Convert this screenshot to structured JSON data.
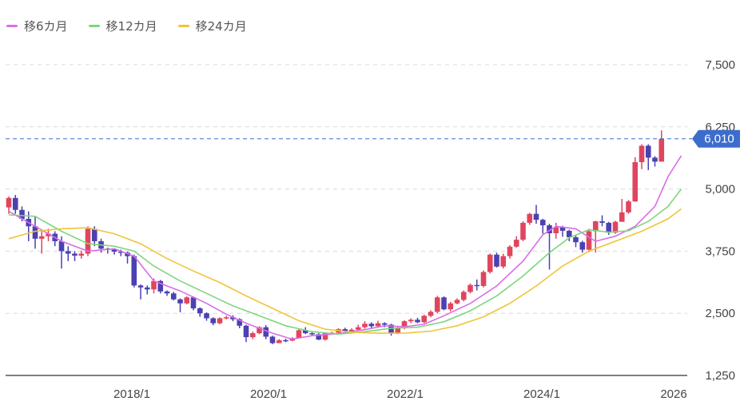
{
  "legend": [
    {
      "label": "移6カ月",
      "color": "#d96ee8"
    },
    {
      "label": "移12カ月",
      "color": "#7ed67e"
    },
    {
      "label": "移24カ月",
      "color": "#efc53a"
    }
  ],
  "current_price": {
    "label": "6,010",
    "value": 6010,
    "color": "#3d6dcc"
  },
  "colors": {
    "up": "#e0455e",
    "down": "#4b41b3",
    "grid": "#d5d8dc",
    "axis": "#555555"
  },
  "chart_data": {
    "type": "candlestick",
    "title": "",
    "xlabel": "",
    "ylabel": "",
    "ylim": [
      1250,
      8000
    ],
    "yticks": [
      1250,
      2500,
      3750,
      5000,
      6250,
      7500
    ],
    "ytick_labels": [
      "1,250",
      "2,500",
      "3,750",
      "5,000",
      "6,250",
      "7,500"
    ],
    "xtick_labels": [
      "2018/1",
      "2020/1",
      "2022/1",
      "2024/1",
      "2026"
    ],
    "grid": true,
    "legend_position": "top-left",
    "start_month": "2016/03",
    "candles": [
      [
        4630,
        4820,
        4850,
        4500
      ],
      [
        4820,
        4580,
        4880,
        4500
      ],
      [
        4580,
        4400,
        4650,
        4350
      ],
      [
        4400,
        4250,
        4550,
        3950
      ],
      [
        4250,
        4000,
        4450,
        3800
      ],
      [
        4000,
        4050,
        4150,
        3700
      ],
      [
        4050,
        4100,
        4200,
        3950
      ],
      [
        4100,
        3950,
        4150,
        3850
      ],
      [
        3950,
        3750,
        4050,
        3400
      ],
      [
        3750,
        3700,
        3850,
        3550
      ],
      [
        3700,
        3660,
        3750,
        3550
      ],
      [
        3660,
        3700,
        3760,
        3600
      ],
      [
        3700,
        4200,
        4250,
        3650
      ],
      [
        4200,
        3950,
        4250,
        3850
      ],
      [
        3950,
        3800,
        4000,
        3720
      ],
      [
        3800,
        3780,
        3820,
        3700
      ],
      [
        3780,
        3740,
        3800,
        3680
      ],
      [
        3740,
        3720,
        3780,
        3650
      ],
      [
        3720,
        3650,
        3740,
        3500
      ],
      [
        3650,
        3060,
        3680,
        3020
      ],
      [
        3060,
        3020,
        3080,
        2780
      ],
      [
        3020,
        2980,
        3060,
        2880
      ],
      [
        2980,
        3150,
        3200,
        2900
      ],
      [
        3150,
        2940,
        3170,
        2900
      ],
      [
        2940,
        2900,
        2960,
        2850
      ],
      [
        2900,
        2780,
        2930,
        2760
      ],
      [
        2780,
        2700,
        2800,
        2520
      ],
      [
        2700,
        2820,
        2840,
        2680
      ],
      [
        2820,
        2600,
        2840,
        2560
      ],
      [
        2600,
        2500,
        2620,
        2430
      ],
      [
        2500,
        2400,
        2520,
        2350
      ],
      [
        2400,
        2300,
        2420,
        2260
      ],
      [
        2300,
        2400,
        2420,
        2280
      ],
      [
        2400,
        2420,
        2450,
        2380
      ],
      [
        2420,
        2380,
        2460,
        2340
      ],
      [
        2380,
        2250,
        2400,
        2200
      ],
      [
        2250,
        2020,
        2270,
        1920
      ],
      [
        2020,
        2100,
        2130,
        1980
      ],
      [
        2100,
        2220,
        2240,
        2080
      ],
      [
        2220,
        2030,
        2260,
        1980
      ],
      [
        2030,
        1900,
        2050,
        1880
      ],
      [
        1900,
        1960,
        1980,
        1900
      ],
      [
        1960,
        1950,
        1990,
        1920
      ],
      [
        1950,
        2000,
        2020,
        1940
      ],
      [
        2000,
        2160,
        2180,
        1990
      ],
      [
        2160,
        2100,
        2220,
        2080
      ],
      [
        2100,
        2080,
        2130,
        2040
      ],
      [
        2080,
        1970,
        2100,
        1960
      ],
      [
        1970,
        2100,
        2120,
        1950
      ],
      [
        2100,
        2110,
        2130,
        2070
      ],
      [
        2110,
        2180,
        2200,
        2090
      ],
      [
        2180,
        2130,
        2210,
        2110
      ],
      [
        2130,
        2170,
        2200,
        2110
      ],
      [
        2170,
        2220,
        2270,
        2150
      ],
      [
        2220,
        2290,
        2340,
        2190
      ],
      [
        2290,
        2240,
        2320,
        2200
      ],
      [
        2240,
        2300,
        2350,
        2220
      ],
      [
        2300,
        2270,
        2320,
        2220
      ],
      [
        2270,
        2100,
        2290,
        2050
      ],
      [
        2100,
        2200,
        2230,
        2080
      ],
      [
        2200,
        2340,
        2360,
        2180
      ],
      [
        2340,
        2370,
        2400,
        2300
      ],
      [
        2370,
        2320,
        2410,
        2300
      ],
      [
        2320,
        2450,
        2470,
        2300
      ],
      [
        2450,
        2530,
        2560,
        2420
      ],
      [
        2530,
        2820,
        2850,
        2500
      ],
      [
        2820,
        2580,
        2840,
        2560
      ],
      [
        2580,
        2700,
        2730,
        2540
      ],
      [
        2700,
        2770,
        2800,
        2680
      ],
      [
        2770,
        2930,
        2960,
        2740
      ],
      [
        2930,
        3070,
        3100,
        2900
      ],
      [
        3070,
        3050,
        3180,
        2960
      ],
      [
        3050,
        3330,
        3360,
        3020
      ],
      [
        3330,
        3680,
        3700,
        3300
      ],
      [
        3680,
        3440,
        3720,
        3420
      ],
      [
        3440,
        3650,
        3700,
        3400
      ],
      [
        3650,
        3840,
        3870,
        3600
      ],
      [
        3840,
        3980,
        4050,
        3820
      ],
      [
        3980,
        4320,
        4350,
        3950
      ],
      [
        4320,
        4500,
        4520,
        4280
      ],
      [
        4500,
        4380,
        4680,
        4300
      ],
      [
        4380,
        4270,
        4400,
        4100
      ],
      [
        4270,
        4110,
        4300,
        3380
      ],
      [
        4110,
        4230,
        4320,
        4000
      ],
      [
        4230,
        4160,
        4260,
        4040
      ],
      [
        4160,
        4030,
        4180,
        3950
      ],
      [
        4030,
        3930,
        4060,
        3830
      ],
      [
        3930,
        3780,
        3960,
        3720
      ],
      [
        3780,
        4150,
        4200,
        3730
      ],
      [
        4150,
        4350,
        4360,
        3720
      ],
      [
        4350,
        4320,
        4470,
        4250
      ],
      [
        4320,
        4120,
        4340,
        4080
      ],
      [
        4120,
        4340,
        4360,
        4100
      ],
      [
        4340,
        4530,
        4800,
        4520
      ],
      [
        4530,
        4750,
        4780,
        4500
      ],
      [
        4750,
        5540,
        5640,
        4740
      ],
      [
        5540,
        5870,
        5900,
        5400
      ],
      [
        5870,
        5630,
        5900,
        5380
      ],
      [
        5630,
        5550,
        5660,
        5450
      ],
      [
        5550,
        6010,
        6180,
        5940
      ]
    ],
    "moving_averages": [
      {
        "name": "移6カ月",
        "color": "#d96ee8",
        "points": [
          [
            0,
            4550
          ],
          [
            4,
            4250
          ],
          [
            8,
            3950
          ],
          [
            12,
            3750
          ],
          [
            16,
            3800
          ],
          [
            19,
            3650
          ],
          [
            22,
            3150
          ],
          [
            26,
            2950
          ],
          [
            30,
            2700
          ],
          [
            33,
            2480
          ],
          [
            36,
            2300
          ],
          [
            40,
            2100
          ],
          [
            43,
            1980
          ],
          [
            46,
            2050
          ],
          [
            50,
            2090
          ],
          [
            54,
            2170
          ],
          [
            57,
            2250
          ],
          [
            60,
            2230
          ],
          [
            63,
            2280
          ],
          [
            66,
            2450
          ],
          [
            70,
            2700
          ],
          [
            74,
            3050
          ],
          [
            78,
            3550
          ],
          [
            81,
            4080
          ],
          [
            83,
            4250
          ],
          [
            86,
            4200
          ],
          [
            89,
            3950
          ],
          [
            92,
            4050
          ],
          [
            95,
            4250
          ],
          [
            98,
            4650
          ],
          [
            100,
            5250
          ],
          [
            102,
            5670
          ]
        ]
      },
      {
        "name": "移12カ月",
        "color": "#7ed67e",
        "points": [
          [
            0,
            4480
          ],
          [
            4,
            4450
          ],
          [
            8,
            4150
          ],
          [
            12,
            3900
          ],
          [
            16,
            3850
          ],
          [
            19,
            3750
          ],
          [
            22,
            3450
          ],
          [
            26,
            3150
          ],
          [
            30,
            2900
          ],
          [
            34,
            2650
          ],
          [
            38,
            2450
          ],
          [
            42,
            2250
          ],
          [
            46,
            2130
          ],
          [
            50,
            2080
          ],
          [
            54,
            2130
          ],
          [
            58,
            2200
          ],
          [
            62,
            2220
          ],
          [
            66,
            2330
          ],
          [
            70,
            2550
          ],
          [
            74,
            2850
          ],
          [
            78,
            3250
          ],
          [
            82,
            3720
          ],
          [
            85,
            4020
          ],
          [
            88,
            4180
          ],
          [
            91,
            4130
          ],
          [
            94,
            4160
          ],
          [
            97,
            4350
          ],
          [
            100,
            4650
          ],
          [
            102,
            5000
          ]
        ]
      },
      {
        "name": "移24カ月",
        "color": "#efc53a",
        "points": [
          [
            0,
            4000
          ],
          [
            4,
            4150
          ],
          [
            8,
            4200
          ],
          [
            12,
            4220
          ],
          [
            16,
            4100
          ],
          [
            20,
            3900
          ],
          [
            24,
            3600
          ],
          [
            28,
            3350
          ],
          [
            32,
            3120
          ],
          [
            36,
            2850
          ],
          [
            40,
            2600
          ],
          [
            44,
            2350
          ],
          [
            48,
            2180
          ],
          [
            52,
            2120
          ],
          [
            56,
            2100
          ],
          [
            60,
            2100
          ],
          [
            64,
            2140
          ],
          [
            68,
            2250
          ],
          [
            72,
            2430
          ],
          [
            76,
            2700
          ],
          [
            80,
            3050
          ],
          [
            84,
            3450
          ],
          [
            88,
            3750
          ],
          [
            92,
            3950
          ],
          [
            96,
            4150
          ],
          [
            100,
            4400
          ],
          [
            102,
            4600
          ]
        ]
      }
    ]
  }
}
